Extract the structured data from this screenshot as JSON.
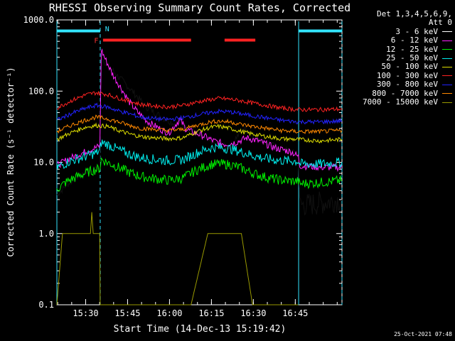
{
  "chart_data": {
    "type": "line",
    "title": "RHESSI Observing Summary Count Rates, Corrected",
    "xlabel": "Start Time (14-Dec-13 15:19:42)",
    "ylabel": "Corrected Count Rate (s⁻¹ detector⁻¹)",
    "x_unit": "minutes since 15:19:42",
    "xlim": [
      0,
      102
    ],
    "ylim": [
      0.1,
      1000
    ],
    "yscale": "log",
    "x_ticks": [
      {
        "t": 10.3,
        "label": "15:30"
      },
      {
        "t": 25.3,
        "label": "15:45"
      },
      {
        "t": 40.3,
        "label": "16:00"
      },
      {
        "t": 55.3,
        "label": "16:15"
      },
      {
        "t": 70.3,
        "label": "16:30"
      },
      {
        "t": 85.3,
        "label": "16:45"
      }
    ],
    "y_ticks": [
      {
        "v": 1000,
        "label": "1000.0"
      },
      {
        "v": 100,
        "label": "100.0"
      },
      {
        "v": 10,
        "label": "10.0"
      },
      {
        "v": 1,
        "label": "1.0"
      },
      {
        "v": 0.1,
        "label": "0.1"
      }
    ],
    "night_intervals": [
      [
        0,
        15.5
      ],
      [
        86.5,
        102
      ]
    ],
    "night_bar_value": 700,
    "flare_bars": [
      [
        16.5,
        48
      ],
      [
        60,
        71
      ]
    ],
    "flare_bar_value": 520,
    "flag_labels": [
      {
        "text": "F",
        "t": 14.1,
        "v": 520,
        "color": "#ff3333"
      },
      {
        "text": "N",
        "t": 18.0,
        "v": 760,
        "color": "#33e5ff"
      }
    ],
    "vlines": [
      0,
      15.5,
      86.5,
      102
    ],
    "series": [
      {
        "name": "3 - 6 keV",
        "color": "#000000",
        "x": [
          0,
          4,
          8,
          11,
          15.4,
          15.8,
          17,
          22,
          27,
          32,
          38,
          42,
          44,
          46,
          50,
          54,
          58,
          62,
          64,
          67,
          70,
          74,
          79,
          84,
          86.4,
          86.9,
          92,
          97,
          102
        ],
        "y": [
          3.5,
          5,
          6.5,
          7.5,
          8.5,
          320,
          260,
          160,
          100,
          60,
          42,
          35,
          36,
          32,
          25,
          20,
          17,
          16,
          22,
          30,
          25,
          20,
          16,
          14,
          12,
          2.5,
          2.6,
          2.8,
          3
        ]
      },
      {
        "name": "6 - 12 keV",
        "color": "#ff22ff",
        "x": [
          0,
          4,
          8,
          12,
          15.4,
          15.9,
          17,
          20,
          23,
          26,
          29,
          33,
          38,
          40,
          44,
          46,
          48,
          52,
          56,
          60,
          64,
          68,
          72,
          78,
          84,
          86.4,
          86.9,
          94,
          102
        ],
        "y": [
          9,
          11,
          13,
          15,
          17,
          380,
          300,
          170,
          110,
          70,
          50,
          36,
          28,
          26,
          40,
          30,
          27,
          24,
          20,
          18,
          19,
          22,
          20,
          16,
          14,
          12,
          9,
          8.5,
          8.5
        ]
      },
      {
        "name": "12 - 25 keV",
        "color": "#00ee00",
        "x": [
          0,
          4,
          8,
          12,
          15.4,
          15.9,
          18,
          22,
          26,
          30,
          35,
          40,
          45,
          50,
          55,
          58,
          62,
          66,
          70,
          74,
          78,
          82,
          86.4,
          86.9,
          94,
          102
        ],
        "y": [
          4.2,
          5.5,
          6.5,
          7.5,
          8.2,
          11,
          10,
          8.5,
          7.2,
          6.3,
          5.9,
          5.6,
          6.0,
          7.8,
          9.3,
          9.5,
          9.3,
          8.3,
          7.1,
          6.3,
          5.8,
          5.5,
          5.4,
          5.0,
          5.2,
          5.6
        ]
      },
      {
        "name": "25 - 50 keV",
        "color": "#00eeee",
        "x": [
          0,
          5,
          10,
          14,
          15.4,
          15.9,
          18,
          22,
          26,
          30,
          35,
          40,
          45,
          50,
          55,
          58,
          62,
          66,
          70,
          75,
          80,
          86.4,
          86.9,
          94,
          102
        ],
        "y": [
          8.5,
          10.5,
          12,
          13.5,
          14.5,
          19,
          18,
          15,
          13,
          11.6,
          11,
          10.6,
          10.9,
          13.5,
          16,
          16.2,
          15.5,
          14,
          12.5,
          11.2,
          10.6,
          10.4,
          9.5,
          9.5,
          10
        ]
      },
      {
        "name": "50 - 100 keV",
        "color": "#dddd00",
        "x": [
          0,
          5,
          10,
          14,
          18,
          22,
          26,
          30,
          35,
          40,
          45,
          50,
          55,
          58,
          62,
          66,
          70,
          75,
          80,
          86,
          94,
          102
        ],
        "y": [
          21,
          26,
          31,
          33,
          32,
          28,
          25,
          23,
          22,
          21.5,
          22,
          27,
          31,
          32,
          30,
          27,
          25,
          23,
          21.5,
          21,
          20,
          21
        ]
      },
      {
        "name": "100 - 300 keV",
        "color": "#ff2222",
        "x": [
          0,
          5,
          10,
          14,
          18,
          22,
          26,
          30,
          35,
          40,
          45,
          50,
          55,
          58,
          62,
          66,
          70,
          75,
          80,
          86,
          94,
          102
        ],
        "y": [
          58,
          73,
          88,
          95,
          90,
          80,
          72,
          65,
          62,
          60,
          63,
          70,
          76,
          79,
          77,
          73,
          68,
          63,
          58,
          55,
          55,
          56
        ]
      },
      {
        "name": "300 - 800 keV",
        "color": "#2222ff",
        "x": [
          0,
          5,
          10,
          14,
          18,
          22,
          26,
          30,
          35,
          40,
          45,
          50,
          55,
          58,
          62,
          66,
          70,
          75,
          80,
          86,
          94,
          102
        ],
        "y": [
          39,
          48,
          57,
          63,
          60,
          53,
          48,
          43,
          41,
          40,
          42,
          46,
          50,
          52,
          51,
          48,
          45,
          42,
          39,
          37,
          37,
          38
        ]
      },
      {
        "name": "800 - 7000 keV",
        "color": "#ff8800",
        "x": [
          0,
          5,
          10,
          14,
          18,
          22,
          26,
          30,
          35,
          40,
          45,
          50,
          55,
          58,
          62,
          66,
          70,
          75,
          80,
          86,
          94,
          102
        ],
        "y": [
          27,
          33,
          39,
          43,
          41,
          37,
          33,
          30,
          29,
          28,
          29,
          33,
          37,
          38,
          37,
          34,
          32,
          30,
          28,
          27,
          27,
          28
        ]
      },
      {
        "name": "7000 - 15000 keV",
        "color": "#999900",
        "x": [
          0,
          2,
          6,
          10,
          12,
          12.5,
          13,
          14,
          15.3,
          15.5,
          24,
          44,
          48,
          54,
          58,
          62,
          66,
          70,
          86.4
        ],
        "y": [
          0.1,
          1.0,
          1.0,
          1.0,
          1.0,
          2.0,
          1.0,
          1.0,
          1.0,
          0.1,
          0.1,
          0.1,
          0.1,
          1.0,
          1.0,
          1.0,
          1.0,
          0.1,
          0.1
        ]
      }
    ]
  },
  "legend": {
    "header_line1": "Det 1,3,4,5,6,9,",
    "header_line2": "Att 0",
    "rows": [
      {
        "label": "3 - 6 keV",
        "color": "#ffffff"
      },
      {
        "label": "6 - 12 keV",
        "color": "#ff22ff"
      },
      {
        "label": "12 - 25 keV",
        "color": "#00ee00"
      },
      {
        "label": "25 - 50 keV",
        "color": "#00eeee"
      },
      {
        "label": "50 - 100 keV",
        "color": "#dddd00"
      },
      {
        "label": "100 - 300 keV",
        "color": "#ff2222"
      },
      {
        "label": "300 - 800 keV",
        "color": "#2222ff"
      },
      {
        "label": "800 - 7000 keV",
        "color": "#ff8800"
      },
      {
        "label": "7000 - 15000 keV",
        "color": "#999900"
      }
    ]
  },
  "footer_stamp": "25-Oct-2021 07:48"
}
